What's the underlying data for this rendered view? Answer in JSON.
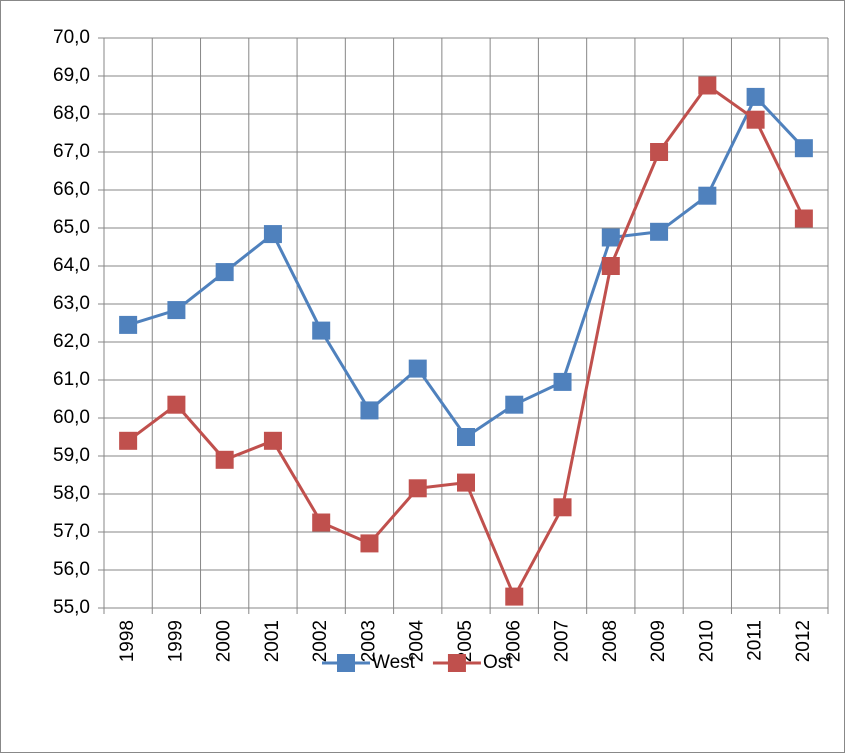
{
  "chart_data": {
    "type": "line",
    "categories": [
      "1998",
      "1999",
      "2000",
      "2001",
      "2002",
      "2003",
      "2004",
      "2005",
      "2006",
      "2007",
      "2008",
      "2009",
      "2010",
      "2011",
      "2012"
    ],
    "series": [
      {
        "name": "West",
        "color": "#4f81bd",
        "values": [
          62.45,
          62.84,
          63.84,
          64.84,
          62.3,
          60.2,
          61.3,
          59.5,
          60.35,
          60.95,
          64.75,
          64.9,
          65.85,
          68.45,
          67.1
        ]
      },
      {
        "name": "Ost",
        "color": "#c0504d",
        "values": [
          59.4,
          60.35,
          58.9,
          59.4,
          57.25,
          56.7,
          58.15,
          58.3,
          55.3,
          57.65,
          64.0,
          67.0,
          68.75,
          67.85,
          65.25
        ]
      }
    ],
    "ylim": [
      55,
      70
    ],
    "yticks": [
      {
        "value": 55,
        "label": "55,0"
      },
      {
        "value": 56,
        "label": "56,0"
      },
      {
        "value": 57,
        "label": "57,0"
      },
      {
        "value": 58,
        "label": "58,0"
      },
      {
        "value": 59,
        "label": "59,0"
      },
      {
        "value": 60,
        "label": "60,0"
      },
      {
        "value": 61,
        "label": "61,0"
      },
      {
        "value": 62,
        "label": "62,0"
      },
      {
        "value": 63,
        "label": "63,0"
      },
      {
        "value": 64,
        "label": "64,0"
      },
      {
        "value": 65,
        "label": "65,0"
      },
      {
        "value": 66,
        "label": "66,0"
      },
      {
        "value": 67,
        "label": "67,0"
      },
      {
        "value": 68,
        "label": "68,0"
      },
      {
        "value": 69,
        "label": "69,0"
      },
      {
        "value": 70,
        "label": "70,0"
      }
    ],
    "grid": true,
    "legend": "bottom"
  }
}
